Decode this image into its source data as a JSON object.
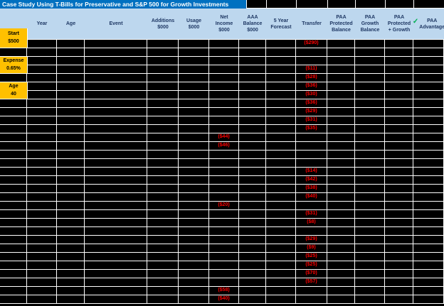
{
  "title": "Case Study Using T-Bills for Preservative and S&P 500 for Growth Investments",
  "colors": {
    "title_bg": "#0070C0",
    "header_bg": "#BDD7EE",
    "header_fg": "#1F3864",
    "accent_orange": "#FFC000",
    "cell_bg": "#000000",
    "gridline": "#FFFFFF",
    "negative_red": "#FF0000",
    "check_green": "#00B050"
  },
  "icons": {
    "check": "✓"
  },
  "sidebar": {
    "start": {
      "label": "Start",
      "value": "$500"
    },
    "expense": {
      "label": "Expense",
      "value": "0.65%"
    },
    "age": {
      "label": "Age",
      "value": "40"
    }
  },
  "columns": [
    {
      "key": "year",
      "label": "Year"
    },
    {
      "key": "age",
      "label": "Age"
    },
    {
      "key": "event",
      "label": "Event"
    },
    {
      "key": "additions",
      "label": "Additions\n$000"
    },
    {
      "key": "usage",
      "label": "Usage\n$000"
    },
    {
      "key": "net_income",
      "label": "Net\nIncome\n$000"
    },
    {
      "key": "aaa_balance",
      "label": "AAA\nBalance\n$000"
    },
    {
      "key": "forecast",
      "label": "5 Year\nForecast"
    },
    {
      "key": "transfer",
      "label": "Transfer"
    },
    {
      "key": "paa_protected",
      "label": "PAA\nProtected\nBalance"
    },
    {
      "key": "paa_growth",
      "label": "PAA\nGrowth\nBalance"
    },
    {
      "key": "paa_protected_growth",
      "label": "PAA\nProtected\n+ Growth"
    },
    {
      "key": "paa_advantage",
      "label": "PAA\nAdvantage",
      "icon": "check"
    }
  ],
  "rows": [
    {
      "net_income": "",
      "transfer": "($290)"
    },
    {
      "net_income": "",
      "transfer": ""
    },
    {
      "net_income": "",
      "transfer": ""
    },
    {
      "net_income": "",
      "transfer": "($11)"
    },
    {
      "net_income": "",
      "transfer": "($28)"
    },
    {
      "net_income": "",
      "transfer": "($36)"
    },
    {
      "net_income": "",
      "transfer": "($30)"
    },
    {
      "net_income": "",
      "transfer": "($36)"
    },
    {
      "net_income": "",
      "transfer": "($29)"
    },
    {
      "net_income": "",
      "transfer": "($31)"
    },
    {
      "net_income": "",
      "transfer": "($35)"
    },
    {
      "net_income": "($44)",
      "transfer": ""
    },
    {
      "net_income": "($46)",
      "transfer": ""
    },
    {
      "net_income": "",
      "transfer": ""
    },
    {
      "net_income": "",
      "transfer": ""
    },
    {
      "net_income": "",
      "transfer": "($14)"
    },
    {
      "net_income": "",
      "transfer": "($42)"
    },
    {
      "net_income": "",
      "transfer": "($38)"
    },
    {
      "net_income": "",
      "transfer": "($40)"
    },
    {
      "net_income": "($20)",
      "transfer": ""
    },
    {
      "net_income": "",
      "transfer": "($31)"
    },
    {
      "net_income": "",
      "transfer": "($8)"
    },
    {
      "net_income": "",
      "transfer": ""
    },
    {
      "net_income": "",
      "transfer": "($29)"
    },
    {
      "net_income": "",
      "transfer": "($9)"
    },
    {
      "net_income": "",
      "transfer": "($25)"
    },
    {
      "net_income": "",
      "transfer": "($25)"
    },
    {
      "net_income": "",
      "transfer": "($70)"
    },
    {
      "net_income": "",
      "transfer": "($57)"
    },
    {
      "net_income": "($58)",
      "transfer": ""
    },
    {
      "net_income": "($40)",
      "transfer": ""
    }
  ]
}
